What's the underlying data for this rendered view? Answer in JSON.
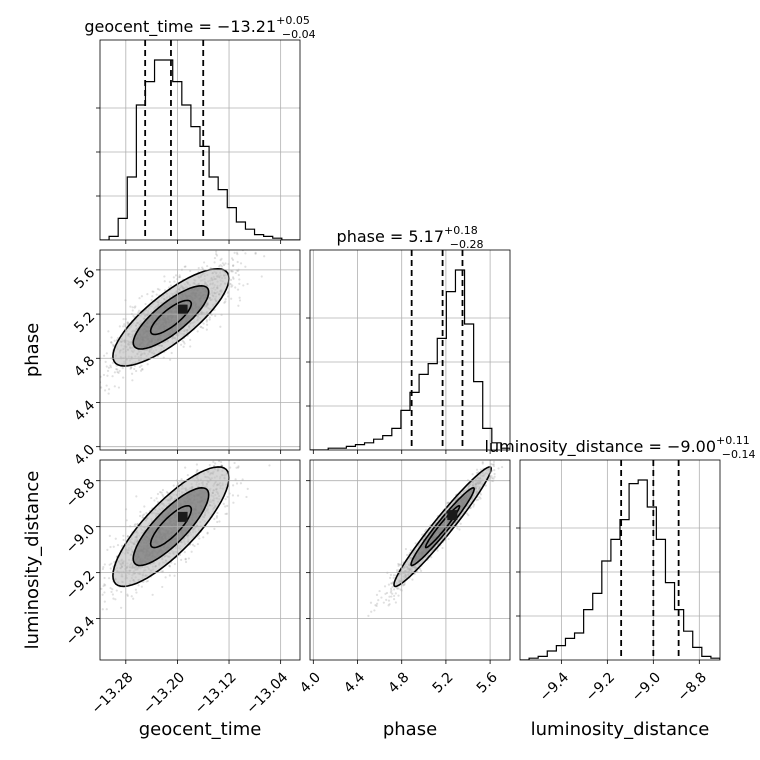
{
  "chart_data": {
    "type": "scatter",
    "title": "",
    "parameters": [
      {
        "name": "geocent_time",
        "axis_label": "geocent_time",
        "range": [
          -13.32,
          -13.01
        ],
        "ticks": [
          -13.28,
          -13.2,
          -13.12,
          -13.04
        ],
        "tick_labels": [
          "−13.28",
          "−13.20",
          "−13.12",
          "−13.04"
        ],
        "title_prefix": "geocent_time = ",
        "median_text": "−13.21",
        "plus_text": "+0.05",
        "minus_text": "−0.04",
        "quantiles": [
          -13.25,
          -13.21,
          -13.16
        ],
        "histogram": [
          0.0,
          0.02,
          0.12,
          0.35,
          0.75,
          0.88,
          1.0,
          1.0,
          0.88,
          0.75,
          0.63,
          0.52,
          0.35,
          0.28,
          0.18,
          0.1,
          0.06,
          0.03,
          0.02,
          0.01,
          0.0,
          0.0
        ]
      },
      {
        "name": "phase",
        "axis_label": "phase",
        "range": [
          3.97,
          5.78
        ],
        "ticks": [
          4.0,
          4.4,
          4.8,
          5.2,
          5.6
        ],
        "tick_labels": [
          "4.0",
          "4.4",
          "4.8",
          "5.2",
          "5.6"
        ],
        "title_prefix": "phase = ",
        "median_text": "5.17",
        "plus_text": "+0.18",
        "minus_text": "−0.28",
        "quantiles": [
          4.89,
          5.17,
          5.35
        ],
        "histogram": [
          0.0,
          0.0,
          0.01,
          0.01,
          0.02,
          0.03,
          0.04,
          0.06,
          0.08,
          0.12,
          0.22,
          0.32,
          0.42,
          0.48,
          0.62,
          0.88,
          1.0,
          0.7,
          0.38,
          0.12,
          0.04,
          0.01
        ]
      },
      {
        "name": "luminosity_distance",
        "axis_label": "luminosity_distance",
        "range": [
          -9.58,
          -8.71
        ],
        "ticks": [
          -9.4,
          -9.2,
          -9.0,
          -8.8
        ],
        "tick_labels": [
          "−9.4",
          "−9.2",
          "−9.0",
          "−8.8"
        ],
        "title_prefix": "luminosity_distance = ",
        "median_text": "−9.00",
        "plus_text": "+0.11",
        "minus_text": "−0.14",
        "quantiles": [
          -9.14,
          -9.0,
          -8.89
        ],
        "histogram": [
          0.0,
          0.01,
          0.02,
          0.05,
          0.08,
          0.12,
          0.15,
          0.28,
          0.37,
          0.55,
          0.67,
          0.78,
          0.98,
          1.0,
          0.85,
          0.67,
          0.43,
          0.28,
          0.16,
          0.07,
          0.02,
          0.01
        ]
      }
    ],
    "grid": true
  }
}
